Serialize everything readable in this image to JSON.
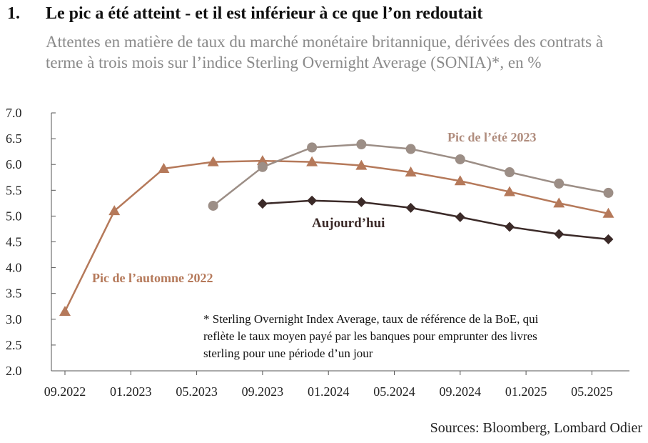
{
  "header": {
    "number": "1.",
    "title": "Le pic a été atteint - et il est inférieur à ce que l’on redoutait",
    "subtitle": "Attentes en matière de taux du marché monétaire britannique, dérivées des contrats à terme à trois mois sur l’indice Sterling Overnight Average (SONIA)*, en %"
  },
  "footnote": {
    "lines": [
      "* Sterling Overnight Index Average, taux de référence de la BoE, qui",
      "reflète le taux moyen payé par les banques pour emprunter des livres",
      "sterling pour une période d’un jour"
    ]
  },
  "sources": "Sources: Bloomberg, Lombard Odier",
  "colors": {
    "autumn2022": "#b5795a",
    "summer2023": "#9c8e86",
    "today": "#3b2a28",
    "axis": "#555555"
  },
  "chart_data": {
    "type": "line",
    "title": "",
    "xlabel": "",
    "ylabel": "",
    "ylim": [
      2.0,
      7.0
    ],
    "yticks": [
      "7.0",
      "6.5",
      "6.0",
      "5.5",
      "5.0",
      "4.5",
      "4.0",
      "3.5",
      "3.0",
      "2.5",
      "2.0"
    ],
    "xticks": [
      "09.2022",
      "01.2023",
      "05.2023",
      "09.2023",
      "01.2024",
      "05.2024",
      "09.2024",
      "01.2025",
      "05.2025"
    ],
    "grid": false,
    "series": [
      {
        "name": "Pic de l’automne 2022",
        "marker": "triangle",
        "color": "#b5795a",
        "x": [
          "2022-09",
          "2022-12",
          "2023-03",
          "2023-06",
          "2023-09",
          "2023-12",
          "2024-03",
          "2024-06",
          "2024-09",
          "2024-12",
          "2025-03",
          "2025-06"
        ],
        "values": [
          3.15,
          5.1,
          5.92,
          6.05,
          6.07,
          6.05,
          5.98,
          5.85,
          5.68,
          5.47,
          5.25,
          5.05
        ]
      },
      {
        "name": "Pic de l’été 2023",
        "marker": "circle",
        "color": "#9c8e86",
        "x": [
          "2023-06",
          "2023-09",
          "2023-12",
          "2024-03",
          "2024-06",
          "2024-09",
          "2024-12",
          "2025-03",
          "2025-06"
        ],
        "values": [
          5.2,
          5.95,
          6.33,
          6.39,
          6.3,
          6.1,
          5.85,
          5.63,
          5.45
        ]
      },
      {
        "name": "Aujourd’hui",
        "marker": "diamond",
        "color": "#3b2a28",
        "x": [
          "2023-09",
          "2023-12",
          "2024-03",
          "2024-06",
          "2024-09",
          "2024-12",
          "2025-03",
          "2025-06"
        ],
        "values": [
          5.24,
          5.3,
          5.27,
          5.16,
          4.98,
          4.79,
          4.65,
          4.55
        ]
      }
    ]
  }
}
